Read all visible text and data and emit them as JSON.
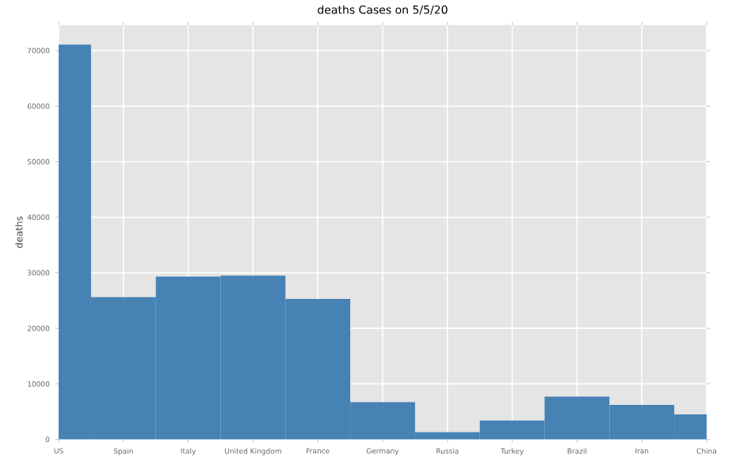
{
  "chart_data": {
    "type": "bar",
    "title": "deaths Cases on 5/5/20",
    "ylabel": "deaths",
    "categories": [
      "US",
      "Spain",
      "Italy",
      "United Kingdom",
      "France",
      "Germany",
      "Russia",
      "Turkey",
      "Brazil",
      "Iran",
      "China"
    ],
    "values": [
      71100,
      25600,
      29300,
      29500,
      25300,
      6700,
      1300,
      3400,
      7700,
      6200,
      4500
    ],
    "color": "#4682b4",
    "ylim": [
      0,
      74600
    ],
    "yticks": [
      0,
      10000,
      20000,
      30000,
      40000,
      50000,
      60000,
      70000
    ],
    "grid": true
  }
}
